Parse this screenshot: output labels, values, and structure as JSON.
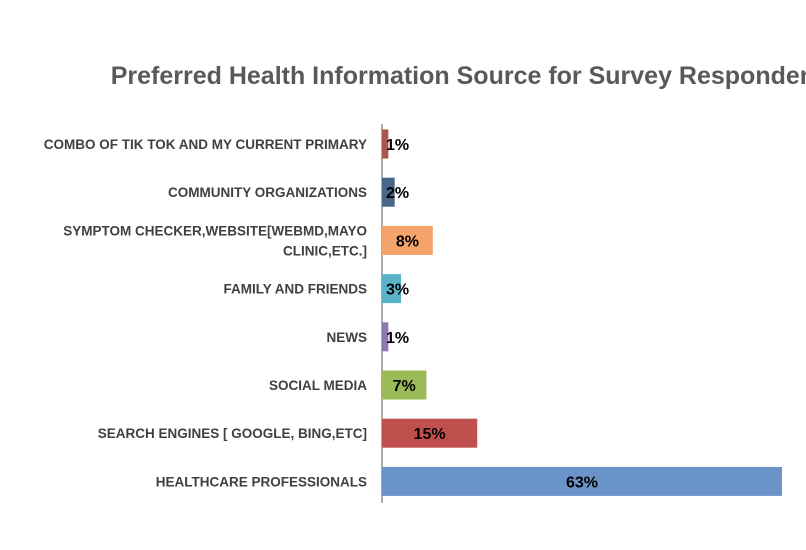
{
  "chart_data": {
    "type": "bar",
    "orientation": "horizontal",
    "title": "Preferred Health Information Source for Survey Respondents",
    "xlabel": "",
    "ylabel": "",
    "xlim": [
      0,
      63
    ],
    "grid": false,
    "legend": "none",
    "categories": [
      [
        "COMBO OF TIK TOK AND MY CURRENT PRIMARY"
      ],
      [
        "COMMUNITY ORGANIZATIONS"
      ],
      [
        "SYMPTOM CHECKER,WEBSITE[WEBMD,MAYO",
        "CLINIC,ETC.]"
      ],
      [
        "FAMILY AND FRIENDS"
      ],
      [
        "NEWS"
      ],
      [
        "SOCIAL MEDIA"
      ],
      [
        "SEARCH ENGINES [ GOOGLE, BING,ETC]"
      ],
      [
        "HEALTHCARE PROFESSIONALS"
      ]
    ],
    "values": [
      1,
      2,
      8,
      3,
      1,
      7,
      15,
      63
    ],
    "data_labels": [
      "1%",
      "2%",
      "8%",
      "3%",
      "1%",
      "7%",
      "15%",
      "63%"
    ],
    "colors": [
      "#A9574F",
      "#4A6689",
      "#F4A46A",
      "#5BB3C9",
      "#8E78B1",
      "#9BBB59",
      "#C0504D",
      "#6A93C9"
    ]
  }
}
